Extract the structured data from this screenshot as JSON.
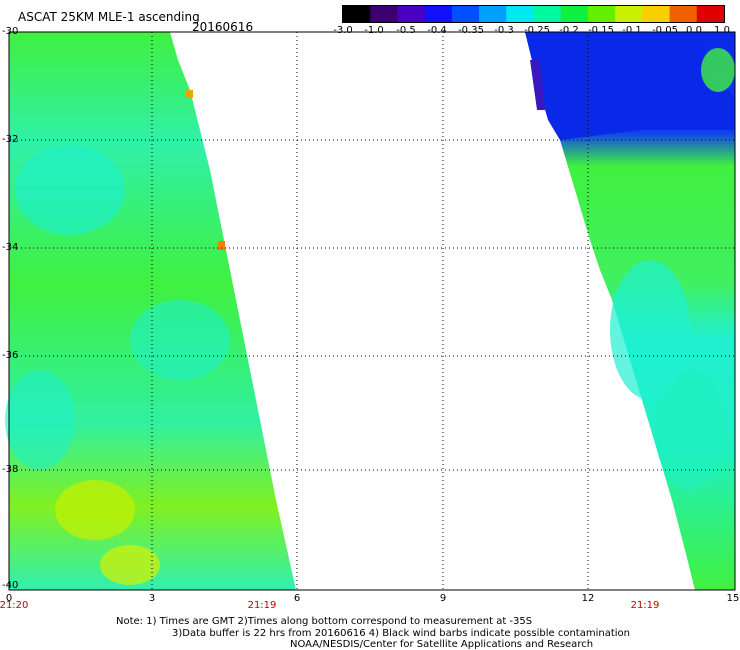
{
  "header": {
    "title": "ASCAT 25KM MLE-1 ascending",
    "date": "20160616"
  },
  "colorbar": {
    "labels": [
      "-3.0",
      "-1.0",
      "-0.5",
      "-0.4",
      "-0.35",
      "-0.3",
      "-0.25",
      "-0.2",
      "-0.15",
      "-0.1",
      "-0.05",
      "0.0",
      "1.0"
    ],
    "colors": [
      "#000000",
      "#3b0070",
      "#4a00c0",
      "#1010ff",
      "#0050ff",
      "#00a0ff",
      "#00e8f0",
      "#00f8a0",
      "#10f040",
      "#60f000",
      "#c8f000",
      "#f8d000",
      "#f06000",
      "#e00000"
    ]
  },
  "map": {
    "lat_labels": [
      "-30",
      "-32",
      "-34",
      "-36",
      "-38",
      "-40"
    ],
    "lon_labels": [
      "0",
      "3",
      "6",
      "9",
      "12",
      "15"
    ],
    "time_labels": [
      "21:20",
      "21:19",
      "21:19"
    ],
    "swath_colors": {
      "green": "#40f040",
      "cyan": "#20f0c8",
      "blue": "#0a28e8",
      "yellow": "#d8f000",
      "orange": "#f08000"
    }
  },
  "notes": {
    "line1": "Note: 1) Times are GMT 2)Times along bottom correspond to measurement at -35S",
    "line2": "3)Data buffer is 22 hrs from 20160616 4) Black wind barbs indicate possible contamination",
    "line3": "NOAA/NESDIS/Center for Satellite Applications and Research"
  }
}
